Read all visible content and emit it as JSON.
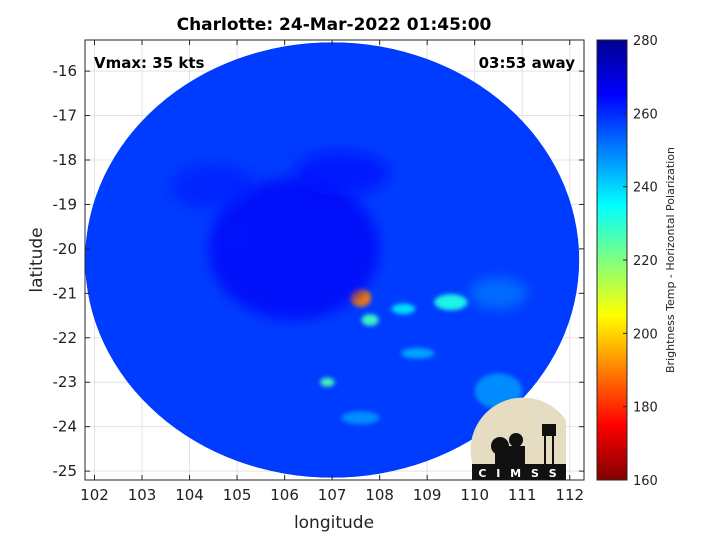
{
  "chart_data": {
    "type": "heatmap",
    "title": "Charlotte: 24-Mar-2022 01:45:00",
    "xlabel": "longitude",
    "ylabel": "latitude",
    "xlim": [
      101.8,
      112.3
    ],
    "ylim": [
      -25.2,
      -15.3
    ],
    "x_ticks": [
      102,
      103,
      104,
      105,
      106,
      107,
      108,
      109,
      110,
      111,
      112
    ],
    "y_ticks": [
      -16,
      -17,
      -18,
      -19,
      -20,
      -21,
      -22,
      -23,
      -24,
      -25
    ],
    "grid": true,
    "swath_center": [
      107.0,
      -20.25
    ],
    "swath_radius_deg": [
      5.2,
      4.9
    ],
    "colorbar": {
      "label": "Brightness Temp - Horizontal Polarization",
      "min": 160,
      "max": 280,
      "ticks": [
        280,
        260,
        240,
        220,
        200,
        180,
        160
      ],
      "colormap": "jet"
    },
    "background_value": 258,
    "features": [
      {
        "lon": 107.6,
        "lat": -21.1,
        "value": 190,
        "sx": 0.22,
        "sy": 0.2
      },
      {
        "lon": 107.8,
        "lat": -21.6,
        "value": 228,
        "sx": 0.18,
        "sy": 0.13
      },
      {
        "lon": 108.5,
        "lat": -21.35,
        "value": 238,
        "sx": 0.25,
        "sy": 0.12
      },
      {
        "lon": 109.5,
        "lat": -21.2,
        "value": 232,
        "sx": 0.35,
        "sy": 0.18
      },
      {
        "lon": 110.5,
        "lat": -21.0,
        "value": 250,
        "sx": 0.6,
        "sy": 0.35
      },
      {
        "lon": 108.8,
        "lat": -22.35,
        "value": 245,
        "sx": 0.35,
        "sy": 0.12
      },
      {
        "lon": 106.9,
        "lat": -23.0,
        "value": 226,
        "sx": 0.15,
        "sy": 0.1
      },
      {
        "lon": 107.6,
        "lat": -23.8,
        "value": 248,
        "sx": 0.4,
        "sy": 0.15
      },
      {
        "lon": 110.5,
        "lat": -23.2,
        "value": 248,
        "sx": 0.5,
        "sy": 0.4
      },
      {
        "lon": 106.2,
        "lat": -20.0,
        "value": 266,
        "sx": 1.8,
        "sy": 1.6
      },
      {
        "lon": 104.5,
        "lat": -18.6,
        "value": 262,
        "sx": 0.9,
        "sy": 0.5
      },
      {
        "lon": 107.2,
        "lat": -18.3,
        "value": 263,
        "sx": 1.0,
        "sy": 0.5
      }
    ]
  },
  "overlays": {
    "vmax": "Vmax: 35 kts",
    "distance": "03:53 away"
  },
  "logo": {
    "text": "C I M S S"
  }
}
